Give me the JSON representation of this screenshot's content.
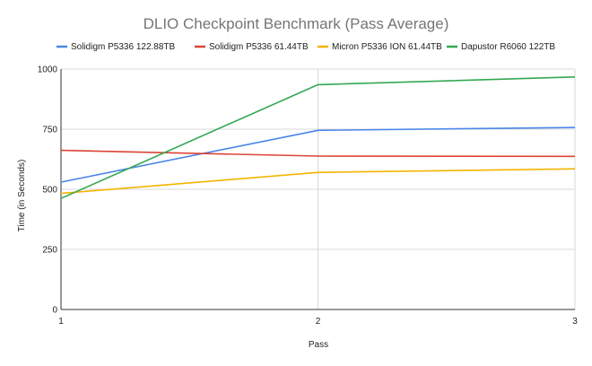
{
  "chart_data": {
    "type": "line",
    "title": "DLIO Checkpoint Benchmark (Pass Average)",
    "xlabel": "Pass",
    "ylabel": "Time (in Seconds)",
    "x": [
      1,
      2,
      3
    ],
    "x_tick_labels": [
      "1",
      "2",
      "3"
    ],
    "ylim": [
      0,
      1000
    ],
    "y_ticks": [
      0,
      250,
      500,
      750,
      1000
    ],
    "y_tick_labels": [
      "0",
      "250",
      "500",
      "750",
      "1000"
    ],
    "grid": true,
    "legend_position": "top",
    "series": [
      {
        "name": "Solidigm P5336 122.88TB",
        "color": "#4a86e8",
        "values": [
          530,
          745,
          757
        ]
      },
      {
        "name": "Solidigm P5336 61.44TB",
        "color": "#db4437",
        "values": [
          662,
          638,
          637
        ]
      },
      {
        "name": "Micron P5336 ION 61.44TB",
        "color": "#f4b400",
        "values": [
          483,
          570,
          585
        ]
      },
      {
        "name": "Dapustor R6060 122TB",
        "color": "#34a853",
        "values": [
          462,
          935,
          967
        ]
      }
    ]
  }
}
